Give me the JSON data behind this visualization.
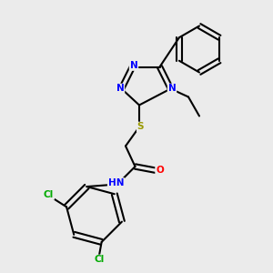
{
  "bg_color": "#ebebeb",
  "bond_color": "#000000",
  "bond_lw": 1.5,
  "atom_colors": {
    "N": "#0000ff",
    "O": "#ff0000",
    "S": "#999900",
    "Cl": "#00aa00",
    "C": "#000000",
    "H": "#000000"
  },
  "font_size": 7.5,
  "font_size_small": 6.5
}
